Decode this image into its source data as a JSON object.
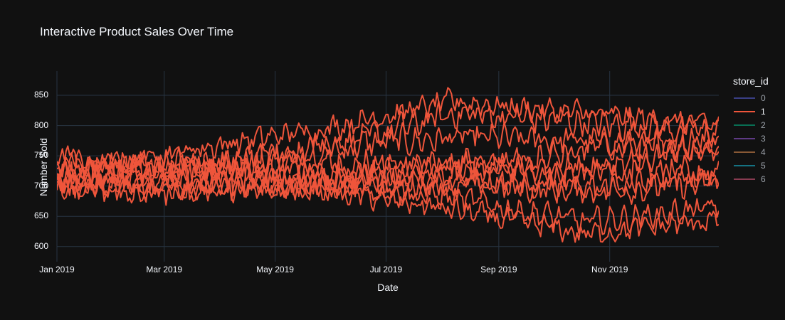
{
  "chart_data": {
    "type": "line",
    "title": "Interactive Product Sales Over Time",
    "xlabel": "Date",
    "ylabel": "Number Sold",
    "x_ticks": [
      "Jan 2019",
      "Mar 2019",
      "May 2019",
      "Jul 2019",
      "Sep 2019",
      "Nov 2019"
    ],
    "x_tick_dates": [
      "2019-01-01",
      "2019-03-01",
      "2019-05-01",
      "2019-07-01",
      "2019-09-01",
      "2019-11-01"
    ],
    "x_range": [
      "2019-01-01",
      "2019-12-31"
    ],
    "y_ticks": [
      600,
      650,
      700,
      750,
      800,
      850
    ],
    "ylim": [
      575,
      890
    ],
    "grid": true,
    "legend_title": "store_id",
    "legend_position": "right",
    "series": [
      {
        "name": "0",
        "color": "#636efa",
        "visible": false,
        "lines": []
      },
      {
        "name": "1",
        "color": "#ef553b",
        "visible": true,
        "lines": [
          {
            "center": [
              735,
              728,
              735,
              735,
              720,
              720
            ],
            "noise": 38
          },
          {
            "center": [
              715,
              728,
              765,
              780,
              775,
              760
            ],
            "noise": 35
          },
          {
            "center": [
              705,
              720,
              760,
              820,
              805,
              790
            ],
            "noise": 35
          },
          {
            "center": [
              725,
              760,
              795,
              840,
              820,
              800
            ],
            "noise": 30
          },
          {
            "center": [
              725,
              740,
              720,
              705,
              690,
              705
            ],
            "noise": 32
          },
          {
            "center": [
              700,
              700,
              700,
              680,
              640,
              665
            ],
            "noise": 30
          },
          {
            "center": [
              700,
              695,
              695,
              660,
              620,
              645
            ],
            "noise": 28
          },
          {
            "center": [
              690,
              690,
              705,
              715,
              735,
              760
            ],
            "noise": 32
          },
          {
            "center": [
              720,
              715,
              712,
              735,
              760,
              780
            ],
            "noise": 34
          },
          {
            "center": [
              740,
              730,
              700,
              705,
              700,
              720
            ],
            "noise": 33
          }
        ]
      },
      {
        "name": "2",
        "color": "#00cc96",
        "visible": false,
        "lines": []
      },
      {
        "name": "3",
        "color": "#ab63fa",
        "visible": false,
        "lines": []
      },
      {
        "name": "4",
        "color": "#ffa15a",
        "visible": false,
        "lines": []
      },
      {
        "name": "5",
        "color": "#19d3f3",
        "visible": false,
        "lines": []
      },
      {
        "name": "6",
        "color": "#ff6692",
        "visible": false,
        "lines": []
      }
    ]
  }
}
